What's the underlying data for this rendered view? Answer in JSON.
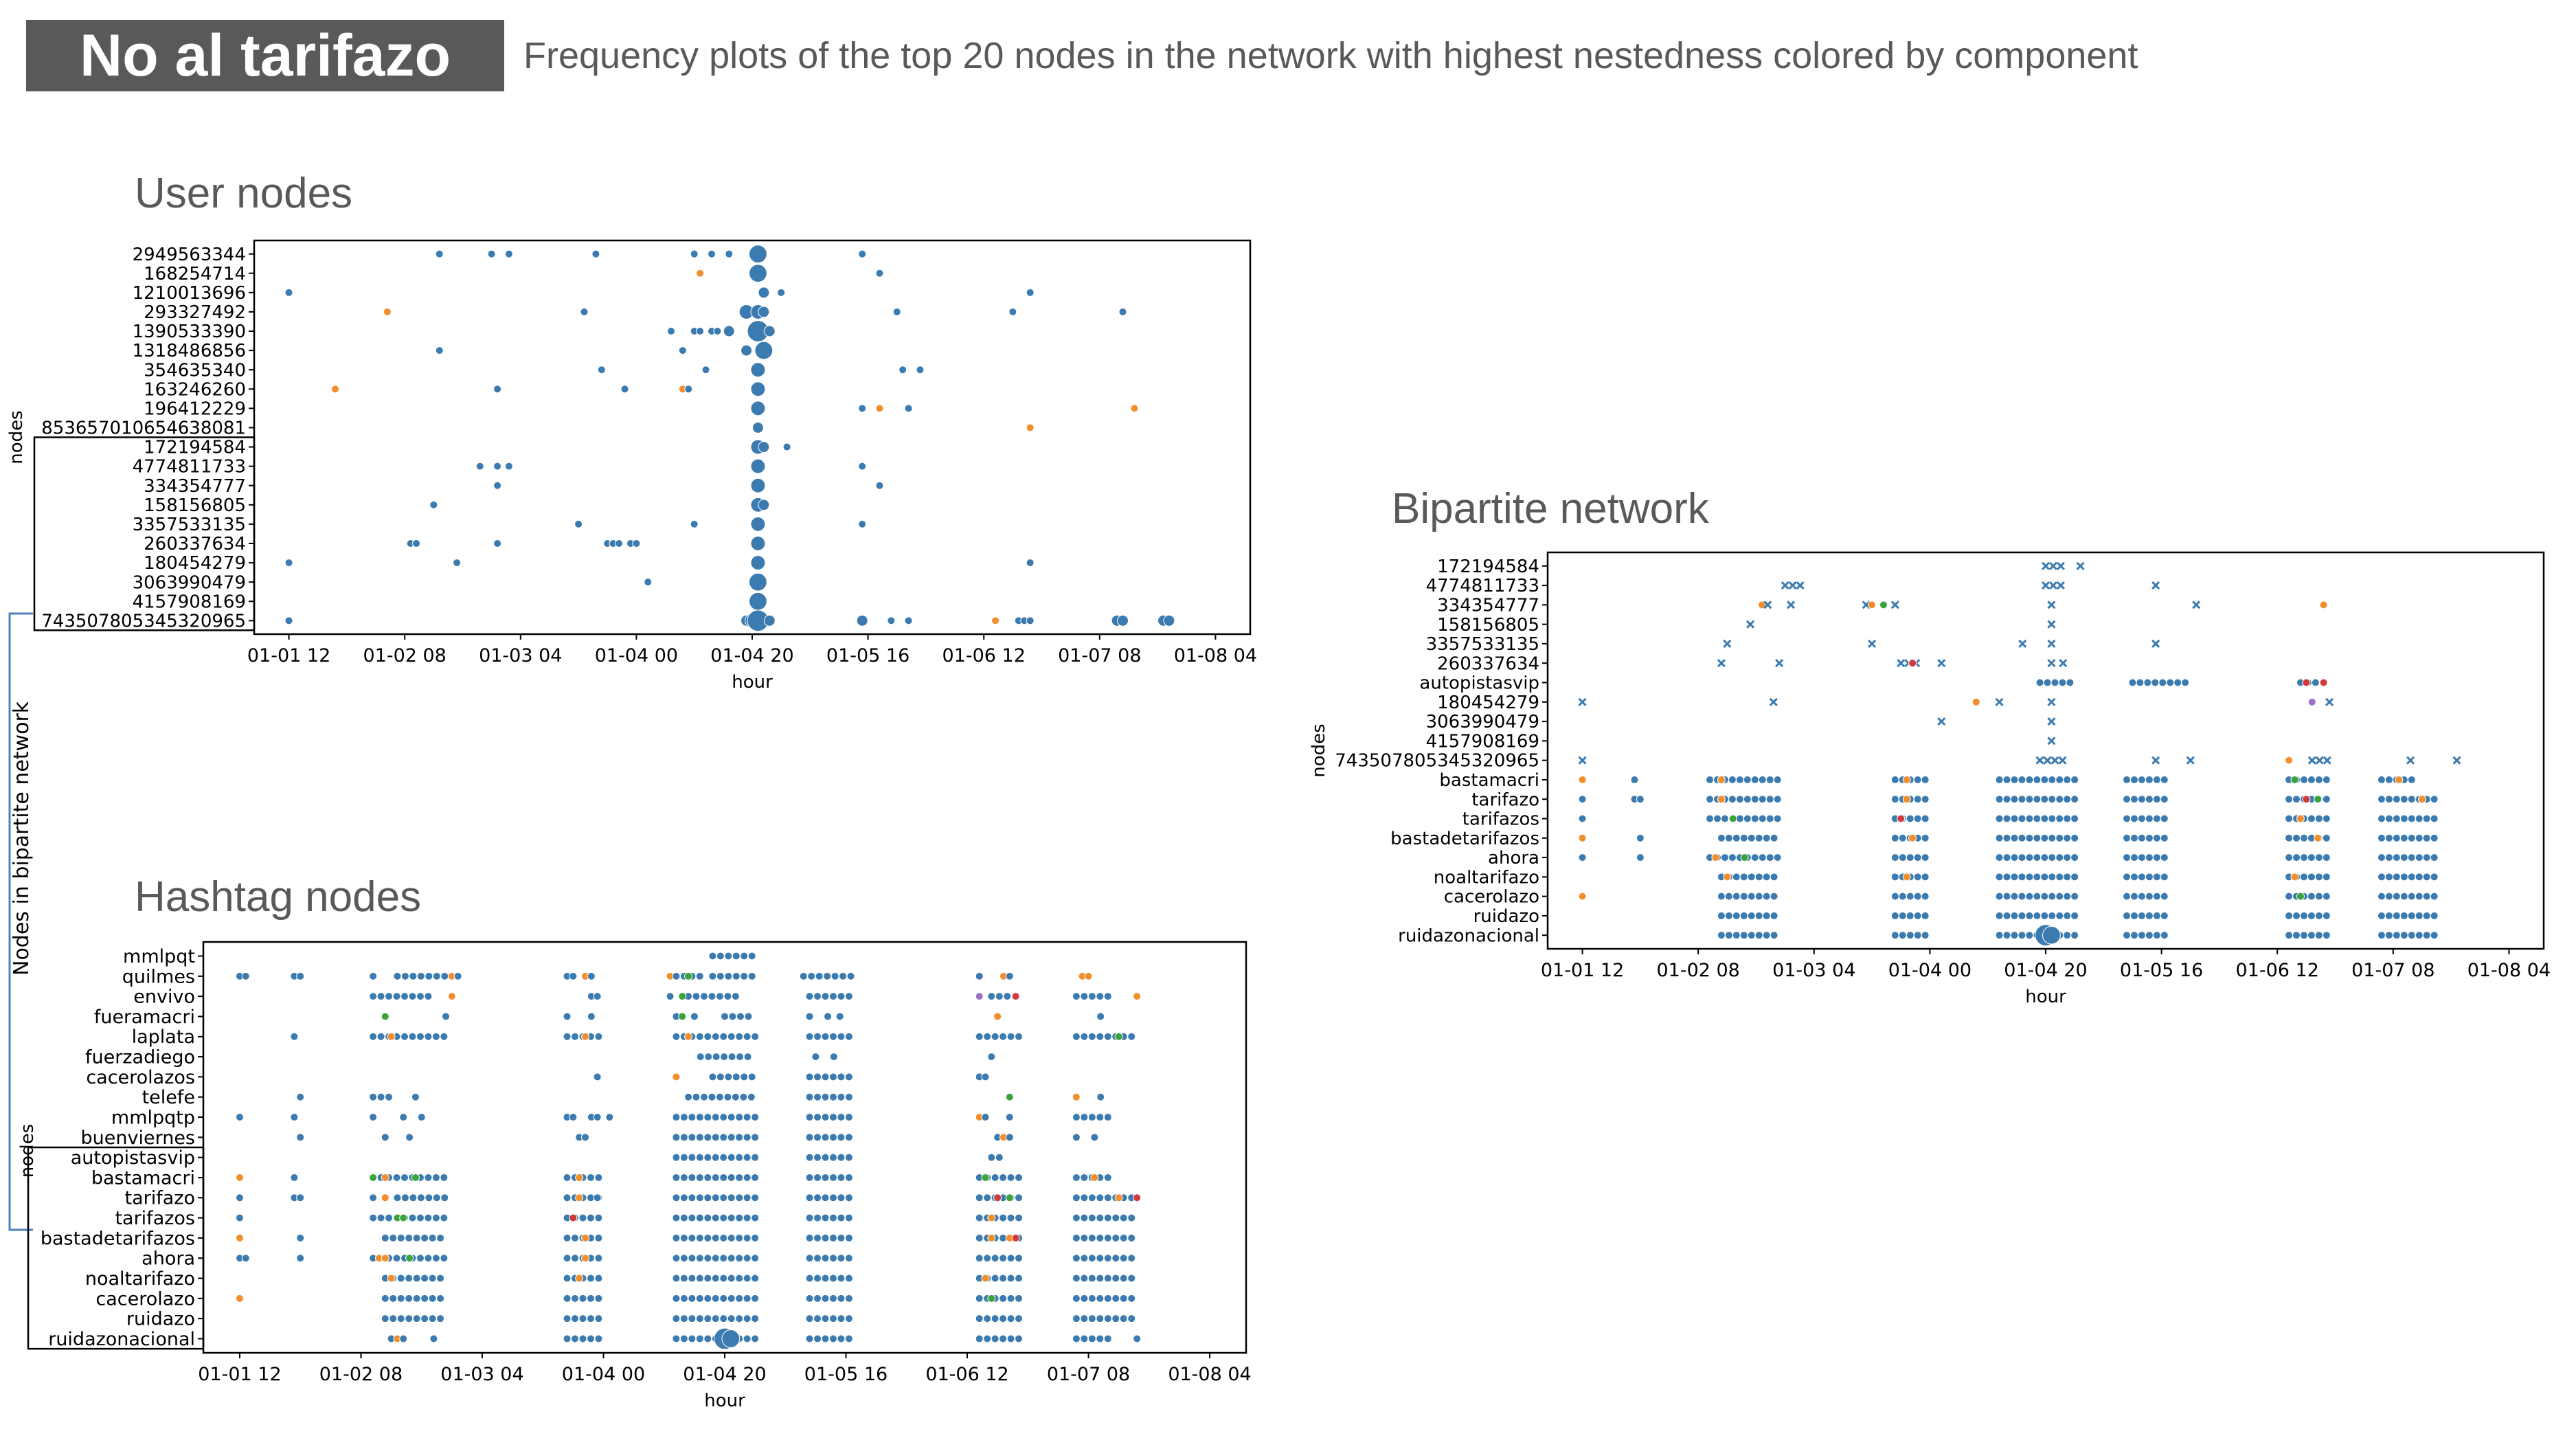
{
  "slide": {
    "title": "No al tarifazo",
    "subtitle": "Frequency plots of the top 20 nodes in the network with highest nestedness colored by component",
    "bracket_label": "Nodes in bipartite network"
  },
  "colors": {
    "blue": "#3b7bb0",
    "orange": "#f28e2b",
    "green": "#3aa33a",
    "red": "#d03a3a",
    "purple": "#9a6fc4",
    "title_bg": "#595959",
    "bracket": "#4f81bd"
  },
  "chart_data": [
    {
      "id": "user",
      "type": "scatter",
      "title": "User nodes",
      "xlabel": "hour",
      "ylabel": "nodes",
      "xlim": [
        "01-01 06",
        "01-08 10"
      ],
      "xticks": [
        "01-01 12",
        "01-02 08",
        "01-03 04",
        "01-04 00",
        "01-04 20",
        "01-05 16",
        "01-06 12",
        "01-07 08",
        "01-08 04"
      ],
      "categories": [
        "2949563344",
        "168254714",
        "1210013696",
        "293327492",
        "1390533390",
        "1318486856",
        "354635340",
        "163246260",
        "196412229",
        "853657010654638081",
        "172194584",
        "4774811733",
        "334354777",
        "158156805",
        "3357533135",
        "260337634",
        "180454279",
        "3063990479",
        "4157908169",
        "743507805345320965"
      ],
      "boxed": [
        "172194584",
        "4774811733",
        "334354777",
        "158156805",
        "3357533135",
        "260337634",
        "180454279",
        "3063990479",
        "4157908169",
        "743507805345320965"
      ],
      "rows": [
        [
          "01-02 14 b",
          "01-02 23 b",
          "01-03 02 b",
          "01-03 17 b",
          "01-04 10 b",
          "01-04 13 b",
          "01-04 16 b",
          "01-04 21 b4",
          "01-05 15 b"
        ],
        [
          "01-04 11 o",
          "01-04 21 b4",
          "01-05 18 b"
        ],
        [
          "01-01 12 b",
          "01-04 22 b2",
          "01-05 01 b",
          "01-06 20 b"
        ],
        [
          "01-02 05 o",
          "01-03 15 b",
          "01-04 19 b3",
          "01-04 21 b3",
          "01-04 22 b2",
          "01-05 21 b",
          "01-06 17 b",
          "01-07 12 b"
        ],
        [
          "01-04 06 b",
          "01-04 10 b",
          "01-04 11 b",
          "01-04 13 b",
          "01-04 14 b",
          "01-04 16 b2",
          "01-04 21 b5",
          "01-04 23 b2"
        ],
        [
          "01-02 14 b",
          "01-04 08 b",
          "01-04 19 b2",
          "01-04 22 b4"
        ],
        [
          "01-03 18 b",
          "01-04 12 b",
          "01-04 21 b3",
          "01-05 22 b",
          "01-06 01 b"
        ],
        [
          "01-01 20 o",
          "01-03 00 b",
          "01-03 22 b",
          "01-04 08 o",
          "01-04 09 b",
          "01-04 21 b3"
        ],
        [
          "01-04 21 b3",
          "01-05 15 b",
          "01-05 18 o",
          "01-05 23 b",
          "01-07 14 o"
        ],
        [
          "01-04 21 b2",
          "01-06 20 o"
        ],
        [
          "01-04 21 b3",
          "01-04 22 b2",
          "01-05 02 b"
        ],
        [
          "01-02 21 b",
          "01-03 00 b",
          "01-03 02 b",
          "01-04 21 b3",
          "01-05 15 b"
        ],
        [
          "01-03 00 b",
          "01-04 21 b3",
          "01-05 18 b"
        ],
        [
          "01-02 13 b",
          "01-04 21 b3",
          "01-04 22 b2"
        ],
        [
          "01-03 14 b",
          "01-04 10 b",
          "01-04 21 b3",
          "01-05 15 b"
        ],
        [
          "01-02 09 b",
          "01-02 10 b",
          "01-03 00 b",
          "01-03 19 b",
          "01-03 20 b",
          "01-03 21 b",
          "01-03 23 b",
          "01-04 00 b",
          "01-04 21 b3"
        ],
        [
          "01-01 12 b",
          "01-02 17 b",
          "01-04 21 b3",
          "01-06 20 b"
        ],
        [
          "01-04 02 b",
          "01-04 21 b4"
        ],
        [
          "01-04 21 b4"
        ],
        [
          "01-01 12 b",
          "01-04 19 b2",
          "01-04 20 b3",
          "01-04 21 b5",
          "01-04 23 b2",
          "01-05 15 b2",
          "01-05 20 b",
          "01-05 23 b",
          "01-06 14 o",
          "01-06 18 b",
          "01-06 19 b",
          "01-06 20 b",
          "01-07 11 b2",
          "01-07 12 b2",
          "01-07 19 b2",
          "01-07 20 b2"
        ]
      ]
    },
    {
      "id": "hashtag",
      "type": "scatter",
      "title": "Hashtag nodes",
      "xlabel": "hour",
      "ylabel": "nodes",
      "xlim": [
        "01-01 06",
        "01-08 10"
      ],
      "xticks": [
        "01-01 12",
        "01-02 08",
        "01-03 04",
        "01-04 00",
        "01-04 20",
        "01-05 16",
        "01-06 12",
        "01-07 08",
        "01-08 04"
      ],
      "categories": [
        "mmlpqt",
        "quilmes",
        "envivo",
        "fueramacri",
        "laplata",
        "fuerzadiego",
        "cacerolazos",
        "telefe",
        "mmlpqtp",
        "buenviernes",
        "autopistasvip",
        "bastamacri",
        "tarifazo",
        "tarifazos",
        "bastadetarifazos",
        "ahora",
        "noaltarifazo",
        "cacerolazo",
        "ruidazo",
        "ruidazonacional"
      ],
      "boxed": [
        "autopistasvip",
        "bastamacri",
        "tarifazo",
        "tarifazos",
        "bastadetarifazos",
        "ahora",
        "noaltarifazo",
        "cacerolazo",
        "ruidazo",
        "ruidazonacional"
      ],
      "rows": [
        [
          "01-04 18-01-05 01 b"
        ],
        [
          "01-01 12 b",
          "01-01 13 b",
          "01-01 21 b",
          "01-01 22 b",
          "01-02 10 b",
          "01-02 14-01-02 22 b",
          "01-02 23 o",
          "01-03 00 b",
          "01-03 18 b",
          "01-03 19 b",
          "01-03 21 o",
          "01-03 22 b",
          "01-04 11 o",
          "01-04 12-01-04 17 b",
          "01-04 14 g",
          "01-04 18-01-05 01 b",
          "01-05 09-01-05 17 b",
          "01-06 14 b",
          "01-06 18 o",
          "01-06 19 b",
          "01-07 07 o",
          "01-07 08 o"
        ],
        [
          "01-02 10-01-02 20 b",
          "01-02 23 o",
          "01-03 22 b",
          "01-03 23 b",
          "01-04 11 b",
          "01-04 14-01-04 22 b",
          "01-04 13 g",
          "01-05 10-01-05 17 b",
          "01-06 14 pu",
          "01-06 16-01-06 21 b",
          "01-06 20 r",
          "01-07 06-01-07 12 b",
          "01-07 16 o"
        ],
        [
          "01-02 12 g",
          "01-02 22 b",
          "01-03 18 b",
          "01-03 22 b",
          "01-04 12 b",
          "01-04 13 g",
          "01-04 15 b",
          "01-04 20-01-05 01 b",
          "01-05 10 b",
          "01-05 13 b",
          "01-05 15 b",
          "01-06 17 o",
          "01-07 10 b"
        ],
        [
          "01-01 21 b",
          "01-02 10-01-02 22 b",
          "01-02 13 o",
          "01-03 18-01-04 00 b",
          "01-03 21 o",
          "01-04 12-01-05 01 b",
          "01-04 14 o",
          "01-05 10-01-05 17 b",
          "01-06 14-01-06 21 b",
          "01-07 06-01-07 16 b",
          "01-07 13 g"
        ],
        [
          "01-04 16-01-05 01 b",
          "01-05 11 b",
          "01-05 14 b",
          "01-06 16 b"
        ],
        [
          "01-03 23 b",
          "01-04 12 o",
          "01-04 18-01-05 01 b",
          "01-05 10-01-05 17 b",
          "01-06 14 b",
          "01-06 15 b"
        ],
        [
          "01-01 22 b",
          "01-02 10-01-02 13 b",
          "01-02 17 b",
          "01-04 14-01-05 01 b",
          "01-05 10-01-05 17 b",
          "01-06 19 g",
          "01-07 06 o",
          "01-07 10 b"
        ],
        [
          "01-01 12 b",
          "01-01 21 b",
          "01-02 10 b",
          "01-02 15 b",
          "01-02 18 b",
          "01-03 18 b",
          "01-03 19 b",
          "01-03 22 b",
          "01-03 23 b",
          "01-04 01 b",
          "01-04 12-01-05 01 b",
          "01-05 10-01-05 17 b",
          "01-06 14 o",
          "01-06 15 b",
          "01-06 19 b",
          "01-07 06-01-07 12 b"
        ],
        [
          "01-01 22 b",
          "01-02 12 b",
          "01-02 16 b",
          "01-03 20 b",
          "01-03 21 b",
          "01-04 12-01-05 01 b",
          "01-05 10-01-05 17 b",
          "01-06 17 b",
          "01-06 18 o",
          "01-06 19 b",
          "01-07 06 b",
          "01-07 09 b"
        ],
        [
          "01-04 12-01-05 01 b",
          "01-05 10-01-05 17 b",
          "01-06 16-01-06 18 b"
        ],
        [
          "01-01 12 o",
          "01-01 21 b",
          "01-02 10-01-02 22 b",
          "01-02 10 g",
          "01-02 12 o",
          "01-02 17 g",
          "01-03 18-01-04 00 b",
          "01-03 20 o",
          "01-04 12-01-05 01 b",
          "01-05 10-01-05 17 b",
          "01-06 14-01-06 21 b",
          "01-06 15 g",
          "01-07 06-01-07 12 b",
          "01-07 09 o"
        ],
        [
          "01-01 12 b",
          "01-01 21 b",
          "01-01 22 b",
          "01-02 10 b",
          "01-02 12 o",
          "01-02 14-01-02 22 b",
          "01-03 18-01-04 00 b",
          "01-03 20 o",
          "01-03 23 b",
          "01-04 12-01-05 01 b",
          "01-05 10-01-05 17 b",
          "01-06 14-01-06 21 b",
          "01-06 17 r",
          "01-06 19 g",
          "01-07 06-01-07 16 b",
          "01-07 13 o",
          "01-07 16 r"
        ],
        [
          "01-01 12 b",
          "01-02 10-01-02 22 b",
          "01-02 14 g",
          "01-02 15 g",
          "01-03 18-01-04 00 b",
          "01-03 19 r",
          "01-04 12-01-05 01 b",
          "01-05 10-01-05 17 b",
          "01-06 14-01-06 21 b",
          "01-06 16 o",
          "01-07 06-01-07 16 b"
        ],
        [
          "01-01 12 o",
          "01-01 22 b",
          "01-02 12-01-02 22 b",
          "01-03 18-01-04 00 b",
          "01-03 21 o",
          "01-04 12-01-05 01 b",
          "01-05 10-01-05 17 b",
          "01-06 14-01-06 21 b",
          "01-06 16 o",
          "01-06 19 o",
          "01-06 20 r",
          "01-07 06-01-07 16 b"
        ],
        [
          "01-01 12 b",
          "01-01 13 b",
          "01-01 22 b",
          "01-02 10-01-02 22 b",
          "01-02 11 o",
          "01-02 12 o",
          "01-02 16 g",
          "01-03 18-01-04 00 b",
          "01-03 21 o",
          "01-04 12-01-05 01 b",
          "01-05 10-01-05 17 b",
          "01-06 14-01-06 21 b",
          "01-07 06-01-07 16 b"
        ],
        [
          "01-02 12-01-02 22 b",
          "01-02 13 o",
          "01-03 18-01-04 00 b",
          "01-03 20 o",
          "01-04 12-01-05 01 b",
          "01-05 10-01-05 17 b",
          "01-06 14-01-06 21 b",
          "01-06 15 o",
          "01-07 06-01-07 16 b"
        ],
        [
          "01-01 12 o",
          "01-02 12-01-02 22 b",
          "01-03 18-01-04 00 b",
          "01-04 12-01-05 01 b",
          "01-05 10-01-05 17 b",
          "01-06 14-01-06 21 b",
          "01-06 16 g",
          "01-07 06-01-07 16 b"
        ],
        [
          "01-02 12-01-02 22 b",
          "01-03 18-01-04 00 b",
          "01-04 12-01-05 01 b",
          "01-05 10-01-05 17 b",
          "01-06 14-01-06 21 b",
          "01-07 06-01-07 16 b"
        ],
        [
          "01-02 13 b",
          "01-02 14 o",
          "01-02 15 b",
          "01-02 20 b",
          "01-03 18-01-04 00 b",
          "01-04 12-01-05 01 b",
          "01-04 20 b5",
          "01-04 21 b4",
          "01-05 10-01-05 17 b",
          "01-06 14-01-06 21 b",
          "01-07 06-01-07 12 b",
          "01-07 16 b"
        ]
      ]
    },
    {
      "id": "bipartite",
      "type": "scatter",
      "title": "Bipartite network",
      "xlabel": "hour",
      "ylabel": "nodes",
      "xlim": [
        "01-01 06",
        "01-08 10"
      ],
      "xticks": [
        "01-01 12",
        "01-02 08",
        "01-03 04",
        "01-04 00",
        "01-04 20",
        "01-05 16",
        "01-06 12",
        "01-07 08",
        "01-08 04"
      ],
      "categories": [
        "172194584",
        "4774811733",
        "334354777",
        "158156805",
        "3357533135",
        "260337634",
        "autopistasvip",
        "180454279",
        "3063990479",
        "4157908169",
        "743507805345320965",
        "bastamacri",
        "tarifazo",
        "tarifazos",
        "bastadetarifazos",
        "ahora",
        "noaltarifazo",
        "cacerolazo",
        "ruidazo",
        "ruidazonacional"
      ],
      "marker_rows": 11,
      "rows": [
        [
          "01-04 20-01-04 23 bx",
          "01-05 02 bx"
        ],
        [
          "01-02 23-01-03 02 bx",
          "01-04 20-01-04 23 bx",
          "01-05 15 bx"
        ],
        [
          "01-02 19 o",
          "01-02 20 bx",
          "01-03 00 bx",
          "01-03 13 bx",
          "01-03 14 o",
          "01-03 16 g",
          "01-03 18 bx",
          "01-04 21-01-04 22 bx",
          "01-05 22 bx",
          "01-06 20 o"
        ],
        [
          "01-02 17 bx",
          "01-04 21-01-04 22 bx"
        ],
        [
          "01-02 13 bx",
          "01-03 14 bx",
          "01-04 16 bx",
          "01-04 21-01-04 22 bx",
          "01-05 15 bx"
        ],
        [
          "01-02 12-01-02 13 bx",
          "01-02 22 bx",
          "01-03 19-01-03 22 bx",
          "01-03 21 r",
          "01-04 02 bx",
          "01-04 21 bx",
          "01-04 23 bx"
        ],
        [
          "01-04 19-01-05 01 b",
          "01-05 11-01-05 21 b",
          "01-06 16-01-06 19 b",
          "01-06 17 r",
          "01-06 20 r"
        ],
        [
          "01-01 12 bx",
          "01-02 21 bx",
          "01-04 08 o",
          "01-04 12 bx",
          "01-04 21 bx",
          "01-06 18 pu",
          "01-06 21 bx"
        ],
        [
          "01-04 02 bx",
          "01-04 21 bx"
        ],
        [
          "01-04 21 bx"
        ],
        [
          "01-01 12 bx",
          "01-04 19-01-04 23 bx",
          "01-05 15 bx",
          "01-05 21 bx",
          "01-06 14 o",
          "01-06 18-01-06 21 bx",
          "01-07 11-01-07 12 bx",
          "01-07 19-01-07 20 bx"
        ],
        [
          "01-01 12 o",
          "01-01 21 b",
          "01-02 10-01-02 22 b",
          "01-02 12 o",
          "01-03 18-01-04 00 b",
          "01-03 20 o",
          "01-04 12-01-05 01 b",
          "01-05 10-01-05 17 b",
          "01-06 14-01-06 21 b",
          "01-06 15 g",
          "01-07 06-01-07 12 b",
          "01-07 09 o"
        ],
        [
          "01-01 12 b",
          "01-01 21 b",
          "01-01 22 b",
          "01-02 10-01-02 22 b",
          "01-02 12 o",
          "01-03 18-01-04 00 b",
          "01-03 20 o",
          "01-04 12-01-05 01 b",
          "01-05 10-01-05 17 b",
          "01-06 14-01-06 21 b",
          "01-06 17 r",
          "01-06 19 g",
          "01-07 06-01-07 16 b",
          "01-07 13 o"
        ],
        [
          "01-01 12 b",
          "01-02 10-01-02 22 b",
          "01-02 14 g",
          "01-03 18-01-04 00 b",
          "01-03 19 r",
          "01-04 12-01-05 01 b",
          "01-05 10-01-05 17 b",
          "01-06 14-01-06 21 b",
          "01-06 16 o",
          "01-07 06-01-07 16 b"
        ],
        [
          "01-01 12 o",
          "01-01 22 b",
          "01-02 12-01-02 22 b",
          "01-03 18-01-04 00 b",
          "01-03 21 o",
          "01-04 12-01-05 01 b",
          "01-05 10-01-05 17 b",
          "01-06 14-01-06 21 b",
          "01-06 19 o",
          "01-07 06-01-07 16 b"
        ],
        [
          "01-01 12 b",
          "01-01 22 b",
          "01-02 10-01-02 22 b",
          "01-02 11 o",
          "01-02 16 g",
          "01-03 18-01-04 00 b",
          "01-04 12-01-05 01 b",
          "01-05 10-01-05 17 b",
          "01-06 14-01-06 21 b",
          "01-07 06-01-07 16 b"
        ],
        [
          "01-02 12-01-02 22 b",
          "01-02 13 o",
          "01-03 18-01-04 00 b",
          "01-03 20 o",
          "01-04 12-01-05 01 b",
          "01-05 10-01-05 17 b",
          "01-06 14-01-06 21 b",
          "01-06 15 o",
          "01-07 06-01-07 16 b"
        ],
        [
          "01-01 12 o",
          "01-02 12-01-02 22 b",
          "01-03 18-01-04 00 b",
          "01-04 12-01-05 01 b",
          "01-05 10-01-05 17 b",
          "01-06 14-01-06 21 b",
          "01-06 16 g",
          "01-07 06-01-07 16 b"
        ],
        [
          "01-02 12-01-02 22 b",
          "01-03 18-01-04 00 b",
          "01-04 12-01-05 01 b",
          "01-05 10-01-05 17 b",
          "01-06 14-01-06 21 b",
          "01-07 06-01-07 16 b"
        ],
        [
          "01-02 12-01-02 22 b",
          "01-03 18-01-04 00 b",
          "01-04 12-01-05 01 b",
          "01-04 20 b5",
          "01-04 21 b4",
          "01-05 10-01-05 17 b",
          "01-06 14-01-06 21 b",
          "01-07 06-01-07 16 b"
        ]
      ]
    }
  ]
}
